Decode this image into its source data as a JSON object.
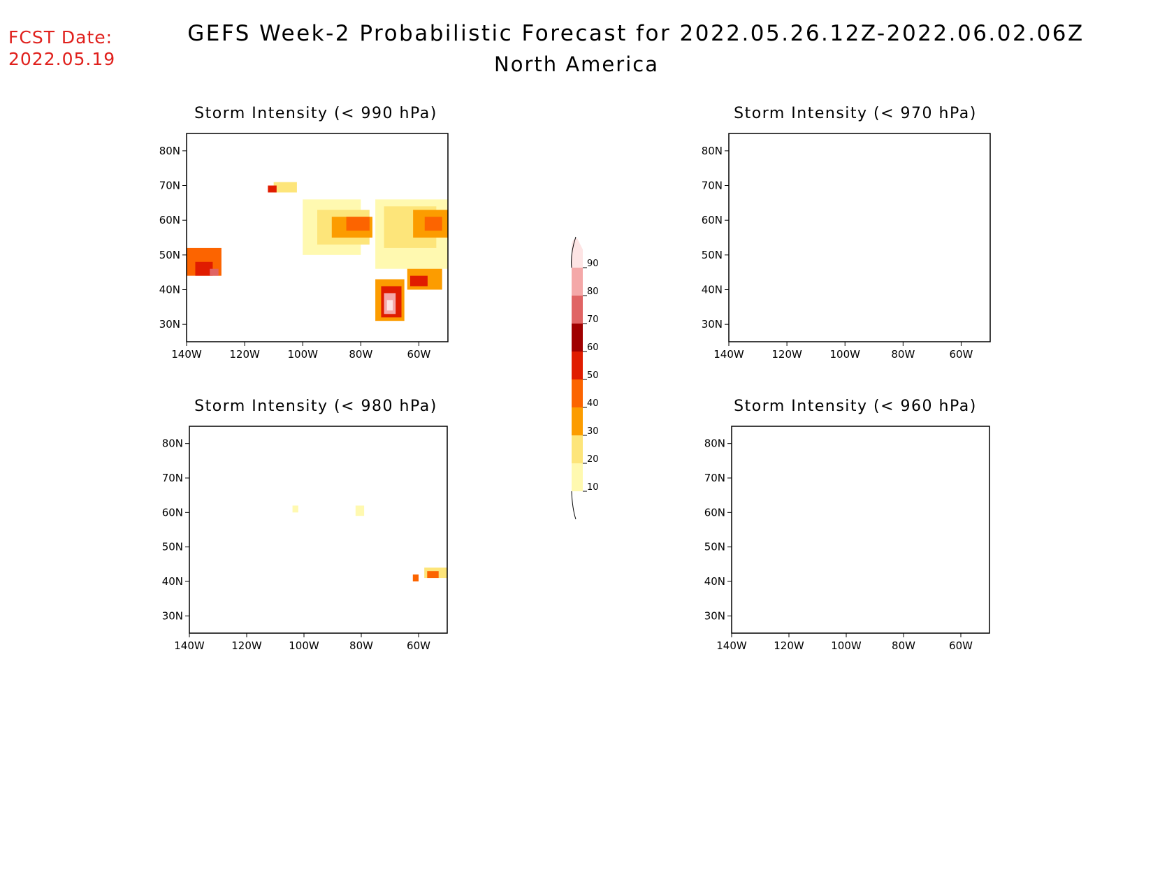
{
  "header": {
    "fcst_label": "FCST Date:",
    "fcst_date": "2022.05.19",
    "title": "GEFS Week-2 Probabilistic Forecast for 2022.05.26.12Z-2022.06.02.06Z",
    "region": "North America"
  },
  "axes": {
    "lat_labels": [
      "80N",
      "70N",
      "60N",
      "50N",
      "40N",
      "30N"
    ],
    "lat_values": [
      80,
      70,
      60,
      50,
      40,
      30
    ],
    "lon_labels": [
      "140W",
      "120W",
      "100W",
      "80W",
      "60W"
    ],
    "lon_values": [
      -140,
      -120,
      -100,
      -80,
      -60
    ],
    "lat_range": [
      25,
      85
    ],
    "lon_range": [
      -140,
      -50
    ]
  },
  "panels": [
    {
      "id": "p990",
      "title": "Storm Intensity (< 990 hPa)"
    },
    {
      "id": "p970",
      "title": "Storm Intensity (< 970 hPa)"
    },
    {
      "id": "p980",
      "title": "Storm Intensity (< 980 hPa)"
    },
    {
      "id": "p960",
      "title": "Storm Intensity (< 960 hPa)"
    }
  ],
  "colorbar": {
    "levels": [
      "10",
      "20",
      "30",
      "40",
      "50",
      "60",
      "70",
      "80",
      "90"
    ],
    "colors": [
      "#fff9b0",
      "#fde57a",
      "#fc9c00",
      "#fc6400",
      "#e01c00",
      "#a00000",
      "#e06464",
      "#f4a8a8",
      "#fde4e4"
    ]
  },
  "probability_areas": {
    "p990": [
      {
        "lon": -140,
        "lat": 44,
        "w": 12,
        "h": 8,
        "level": 40
      },
      {
        "lon": -137,
        "lat": 44,
        "w": 6,
        "h": 4,
        "level": 50
      },
      {
        "lon": -132,
        "lat": 44,
        "w": 3,
        "h": 2,
        "level": 70
      },
      {
        "lon": -100,
        "lat": 50,
        "w": 20,
        "h": 16,
        "level": 10
      },
      {
        "lon": -95,
        "lat": 53,
        "w": 18,
        "h": 10,
        "level": 20
      },
      {
        "lon": -90,
        "lat": 55,
        "w": 14,
        "h": 6,
        "level": 30
      },
      {
        "lon": -85,
        "lat": 57,
        "w": 8,
        "h": 4,
        "level": 40
      },
      {
        "lon": -75,
        "lat": 46,
        "w": 25,
        "h": 20,
        "level": 10
      },
      {
        "lon": -72,
        "lat": 52,
        "w": 18,
        "h": 12,
        "level": 20
      },
      {
        "lon": -62,
        "lat": 55,
        "w": 12,
        "h": 8,
        "level": 30
      },
      {
        "lon": -58,
        "lat": 57,
        "w": 6,
        "h": 4,
        "level": 40
      },
      {
        "lon": -75,
        "lat": 31,
        "w": 10,
        "h": 12,
        "level": 30
      },
      {
        "lon": -73,
        "lat": 32,
        "w": 7,
        "h": 9,
        "level": 50
      },
      {
        "lon": -72,
        "lat": 33,
        "w": 4,
        "h": 6,
        "level": 80
      },
      {
        "lon": -71,
        "lat": 34,
        "w": 2,
        "h": 3,
        "level": 90
      },
      {
        "lon": -64,
        "lat": 40,
        "w": 12,
        "h": 6,
        "level": 30
      },
      {
        "lon": -63,
        "lat": 41,
        "w": 6,
        "h": 3,
        "level": 50
      },
      {
        "lon": -110,
        "lat": 68,
        "w": 8,
        "h": 3,
        "level": 20
      },
      {
        "lon": -112,
        "lat": 68,
        "w": 3,
        "h": 2,
        "level": 50
      }
    ],
    "p980": [
      {
        "lon": -104,
        "lat": 60,
        "w": 2,
        "h": 2,
        "level": 10
      },
      {
        "lon": -82,
        "lat": 59,
        "w": 3,
        "h": 3,
        "level": 10
      },
      {
        "lon": -62,
        "lat": 40,
        "w": 2,
        "h": 2,
        "level": 40
      },
      {
        "lon": -58,
        "lat": 41,
        "w": 8,
        "h": 3,
        "level": 20
      },
      {
        "lon": -57,
        "lat": 41,
        "w": 4,
        "h": 2,
        "level": 40
      }
    ],
    "p970": [],
    "p960": []
  }
}
